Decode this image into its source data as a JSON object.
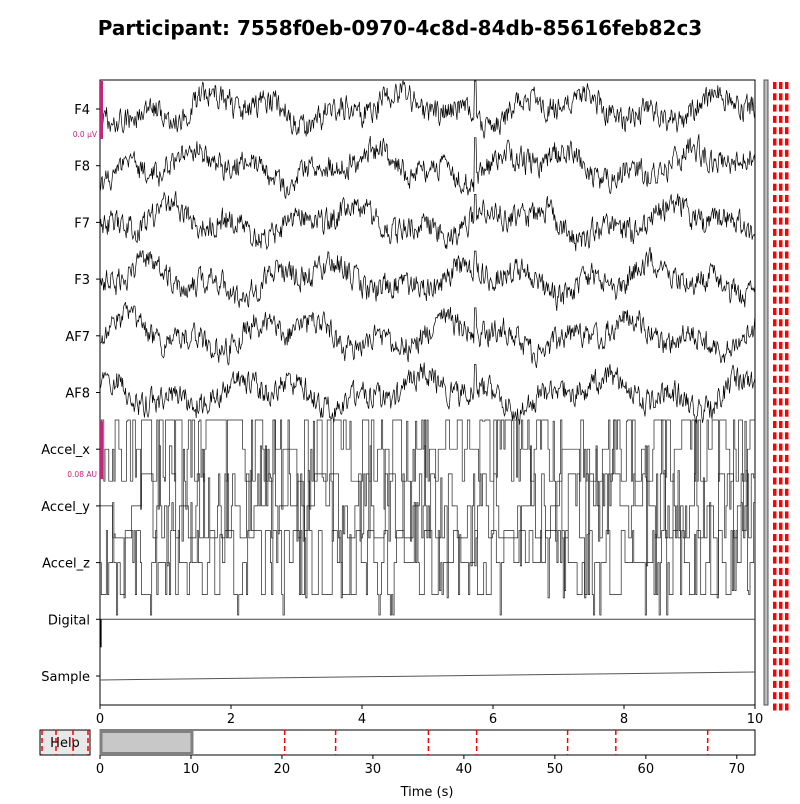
{
  "chart_data": {
    "type": "line",
    "title": "Participant: 7558f0eb-0970-4c8d-84db-85616feb82c3",
    "channels": [
      {
        "name": "F4",
        "kind": "eeg"
      },
      {
        "name": "F8",
        "kind": "eeg"
      },
      {
        "name": "F7",
        "kind": "eeg"
      },
      {
        "name": "F3",
        "kind": "eeg"
      },
      {
        "name": "AF7",
        "kind": "eeg"
      },
      {
        "name": "AF8",
        "kind": "eeg"
      },
      {
        "name": "Accel_x",
        "kind": "accel"
      },
      {
        "name": "Accel_y",
        "kind": "accel"
      },
      {
        "name": "Accel_z",
        "kind": "accel"
      },
      {
        "name": "Digital",
        "kind": "digital"
      },
      {
        "name": "Sample",
        "kind": "sample"
      }
    ],
    "main_axis": {
      "xlim": [
        0,
        10
      ],
      "xticks": [
        "0",
        "2",
        "4",
        "6",
        "8",
        "10"
      ]
    },
    "scale_bars": [
      {
        "channel": "F4",
        "label": "0.0 µV"
      },
      {
        "channel": "Accel_x",
        "label": "0.08 AU"
      }
    ],
    "overview_axis": {
      "xlim": [
        0,
        72
      ],
      "xticks": [
        "0",
        "10",
        "20",
        "30",
        "40",
        "50",
        "60",
        "70"
      ],
      "xlabel": "Time (s)",
      "view_window": [
        0,
        10
      ],
      "event_times": [
        20.3,
        25.9,
        36.1,
        41.4,
        51.4,
        56.7,
        66.8
      ]
    },
    "colors": {
      "trace": "#000000",
      "event": "#ff0000",
      "scalebar": "#c0287a",
      "window_fill": "#c8c8c8",
      "window_edge": "#808080"
    }
  },
  "help_button": {
    "label": "Help"
  }
}
